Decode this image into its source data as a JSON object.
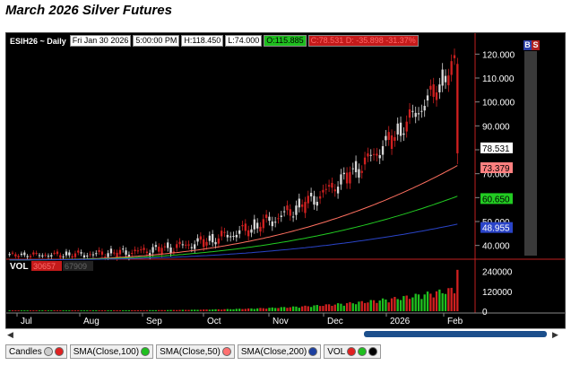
{
  "title": "March 2026 Silver Futures",
  "header": {
    "symbol": "ESIH26 ~ Daily",
    "date": "Fri Jan 30 2026",
    "time": "5:00:00 PM",
    "high": "H:118.450",
    "low": "L:74.000",
    "open": "O:115.885",
    "change": "C:78.531  D: -35.898  -31.37%"
  },
  "buttons": {
    "b": "B",
    "s": "S"
  },
  "price_labels": [
    "120.000",
    "110.000",
    "100.000",
    "90.000",
    "80.000",
    "70.000",
    "60.000",
    "50.000",
    "40.000"
  ],
  "tags": {
    "close": "78.531",
    "sma100": "73.379",
    "sma50": "60.650",
    "sma200": "48.955"
  },
  "volume": {
    "label": "VOL",
    "value1": "30657",
    "value2": "67909",
    "axis": [
      "240000",
      "120000",
      "0"
    ]
  },
  "months": [
    "Jul",
    "Aug",
    "Sep",
    "Oct",
    "Nov",
    "Dec",
    "2026",
    "Feb"
  ],
  "status": [
    {
      "label": "Candles",
      "dots": [
        "#cccccc",
        "#e02020"
      ]
    },
    {
      "label": "SMA(Close,100)",
      "dots": [
        "#1fbf1f"
      ]
    },
    {
      "label": "SMA(Close,50)",
      "dots": [
        "#ff7070"
      ]
    },
    {
      "label": "SMA(Close,200)",
      "dots": [
        "#1c3fa0"
      ]
    },
    {
      "label": "VOL",
      "dots": [
        "#e02020",
        "#1fbf1f",
        "#000000"
      ]
    }
  ],
  "colors": {
    "up": "#d8d8d8",
    "down": "#d02020",
    "sma50": "#ff7060",
    "sma100": "#22cc22",
    "sma200": "#2a44c8"
  }
}
